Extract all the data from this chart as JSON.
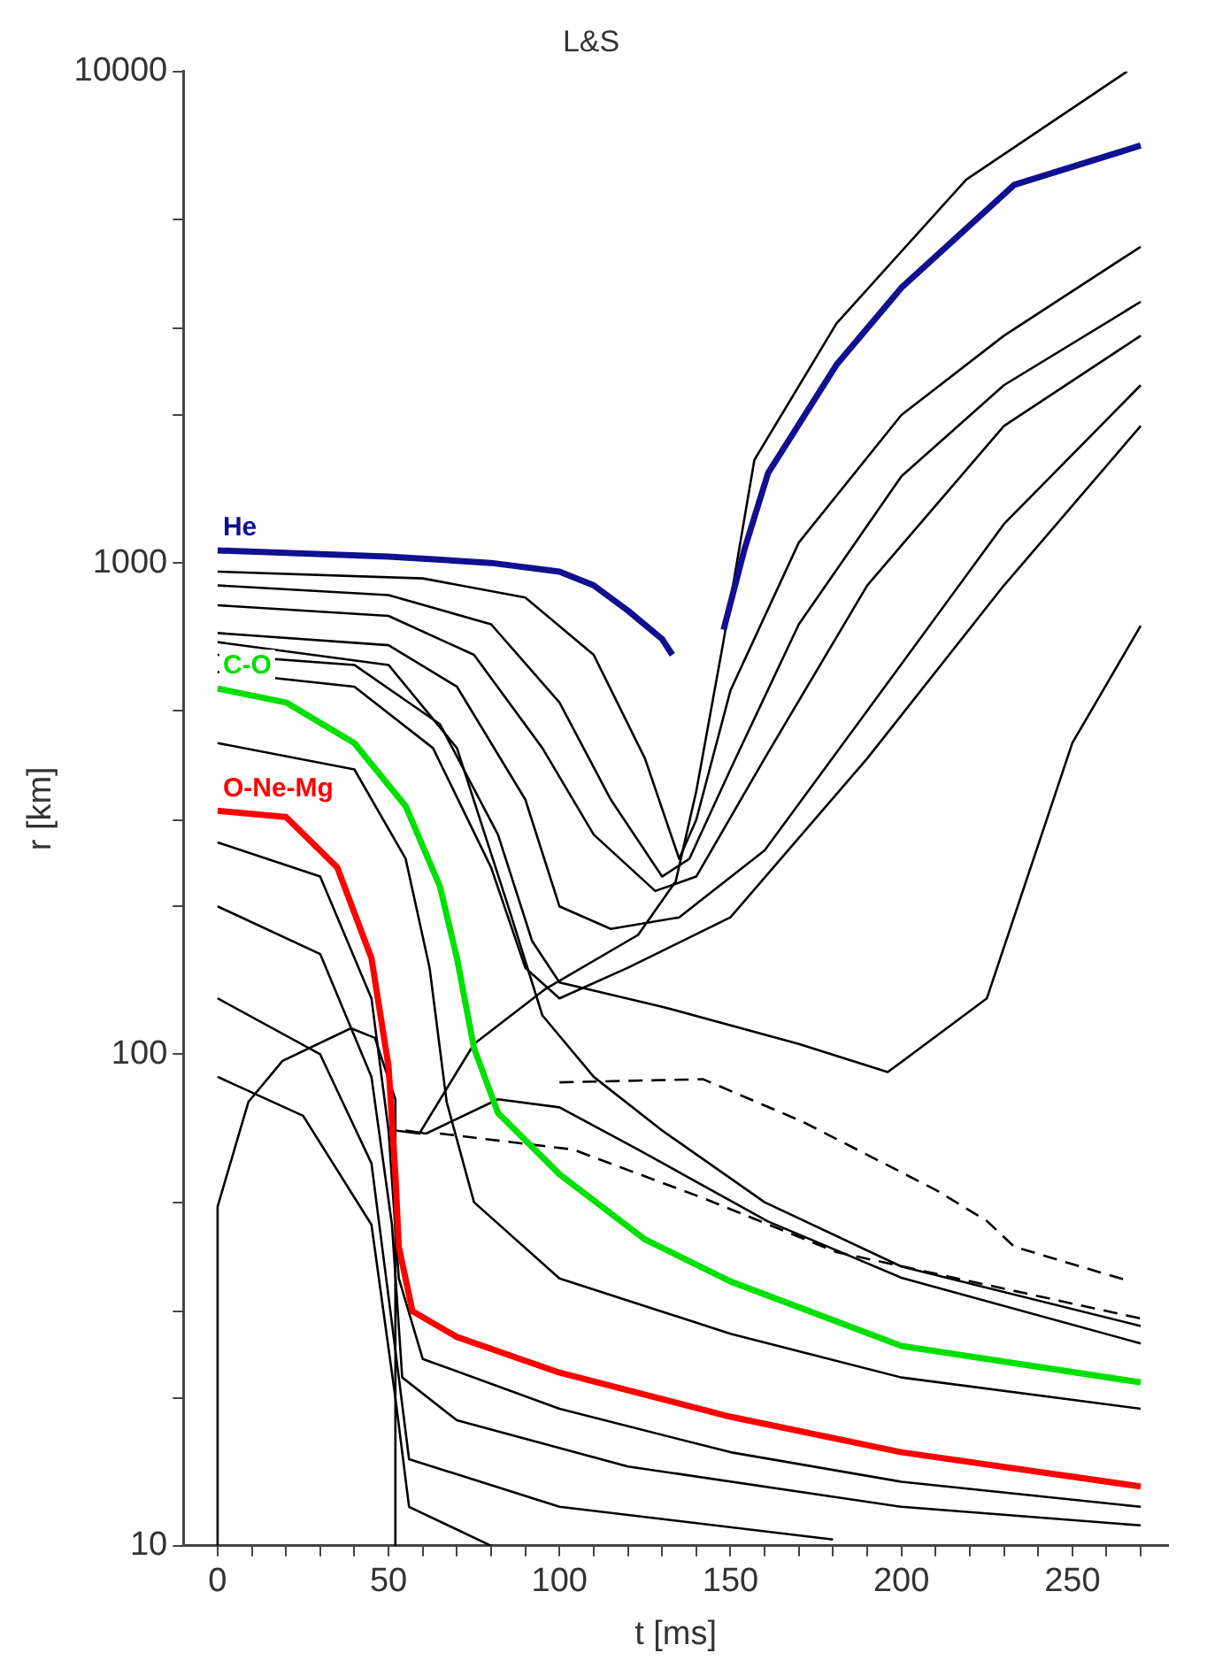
{
  "chart_data": {
    "type": "line",
    "title": "L&S",
    "xlabel": "t [ms]",
    "ylabel": "r [km]",
    "log": "y",
    "legend": false,
    "marker": "none",
    "xlim": [
      -10,
      278
    ],
    "ylim": [
      10,
      10000
    ],
    "xticks": [
      0,
      {
        "value": 10,
        "label": null
      },
      {
        "value": 20,
        "label": null
      },
      {
        "value": 30,
        "label": null
      },
      {
        "value": 40,
        "label": null
      },
      50,
      {
        "value": 60,
        "label": null
      },
      {
        "value": 70,
        "label": null
      },
      {
        "value": 80,
        "label": null
      },
      {
        "value": 90,
        "label": null
      },
      100,
      {
        "value": 110,
        "label": null
      },
      {
        "value": 120,
        "label": null
      },
      {
        "value": 130,
        "label": null
      },
      {
        "value": 140,
        "label": null
      },
      150,
      {
        "value": 160,
        "label": null
      },
      {
        "value": 170,
        "label": null
      },
      {
        "value": 180,
        "label": null
      },
      {
        "value": 190,
        "label": null
      },
      200,
      {
        "value": 210,
        "label": null
      },
      {
        "value": 220,
        "label": null
      },
      {
        "value": 230,
        "label": null
      },
      {
        "value": 240,
        "label": null
      },
      250,
      {
        "value": 260,
        "label": null
      },
      {
        "value": 270,
        "label": null
      }
    ],
    "yticks": [
      10,
      {
        "value": 20,
        "label": null
      },
      {
        "value": 30,
        "label": null
      },
      {
        "value": 50,
        "label": null
      },
      100,
      {
        "value": 200,
        "label": null
      },
      {
        "value": 300,
        "label": null
      },
      {
        "value": 500,
        "label": null
      },
      1000,
      {
        "value": 2000,
        "label": null
      },
      {
        "value": 3000,
        "label": null
      },
      {
        "value": 5000,
        "label": null
      },
      10000
    ],
    "series": [
      {
        "name": "He",
        "color": "#101090",
        "x": [
          0,
          50,
          80,
          100,
          110,
          120,
          130,
          133,
          140,
          148,
          154,
          161,
          181,
          200,
          233,
          270
        ],
        "values": [
          1060,
          1030,
          1000,
          960,
          900,
          800,
          700,
          650,
          null,
          731,
          1060,
          1523,
          2530,
          3630,
          5880,
          7070
        ]
      },
      {
        "name": "C-O",
        "color": "#00e000",
        "x": [
          0,
          20,
          40,
          55,
          65,
          70,
          75,
          82,
          100,
          125,
          150,
          200,
          270
        ],
        "values": [
          555,
          520,
          430,
          320,
          220,
          157,
          103,
          76,
          57,
          42,
          34.5,
          25.5,
          21.5
        ]
      },
      {
        "name": "O-Ne-Mg",
        "color": "#ff0000",
        "x": [
          0,
          20,
          35,
          45,
          50,
          52,
          53,
          57,
          70,
          100,
          150,
          200,
          270
        ],
        "values": [
          313,
          304,
          240,
          157,
          94.5,
          57,
          40.6,
          30,
          26.6,
          22.5,
          18.3,
          15.5,
          13.2
        ]
      },
      {
        "color": "#000000",
        "x": [
          52,
          59,
          75,
          96,
          123,
          134,
          140,
          148,
          157,
          181,
          219,
          266
        ],
        "values": [
          70,
          69,
          105,
          136,
          175,
          225,
          343,
          695,
          1620,
          3070,
          6030,
          10000
        ]
      },
      {
        "color": "#000000",
        "x": [
          0,
          0,
          9,
          19,
          39,
          46,
          52,
          52
        ],
        "values": [
          10,
          49,
          80,
          97,
          113,
          108,
          81,
          10
        ]
      },
      {
        "color": "#000000",
        "x": [
          55,
          61,
          82,
          100,
          123,
          161,
          200,
          270
        ],
        "values": [
          70,
          69,
          81,
          78,
          64,
          45.7,
          35.1,
          25.8
        ]
      },
      {
        "color": "#000000",
        "line_style": "dashed",
        "x": [
          100,
          142,
          171,
          210,
          225,
          233,
          267
        ],
        "values": [
          87.7,
          89,
          73,
          53,
          45.8,
          40.6,
          34.5
        ]
      },
      {
        "color": "#000000",
        "line_style": "dashed",
        "x": [
          65,
          104,
          142,
          181,
          270
        ],
        "values": [
          69,
          64,
          51,
          39.6,
          29
        ]
      },
      {
        "color": "#000000",
        "x": [
          0,
          60,
          90,
          110,
          125,
          135,
          140,
          150,
          170,
          200,
          230,
          270
        ],
        "values": [
          960,
          930,
          850,
          650,
          400,
          250,
          300,
          550,
          1100,
          2000,
          2900,
          4400
        ]
      },
      {
        "color": "#000000",
        "x": [
          0,
          50,
          80,
          100,
          115,
          130,
          138,
          150,
          170,
          200,
          230,
          270
        ],
        "values": [
          900,
          860,
          750,
          520,
          330,
          230,
          250,
          380,
          750,
          1500,
          2300,
          3400
        ]
      },
      {
        "color": "#000000",
        "x": [
          0,
          50,
          75,
          95,
          110,
          128,
          140,
          160,
          190,
          230,
          270
        ],
        "values": [
          820,
          780,
          650,
          420,
          280,
          215,
          230,
          400,
          900,
          1900,
          2900
        ]
      },
      {
        "color": "#000000",
        "x": [
          0,
          50,
          70,
          90,
          100,
          115,
          135,
          160,
          190,
          230,
          270
        ],
        "values": [
          720,
          680,
          560,
          330,
          200,
          180,
          190,
          260,
          500,
          1200,
          2300
        ]
      },
      {
        "color": "#000000",
        "x": [
          0,
          40,
          63,
          80,
          90,
          100,
          120,
          150,
          190,
          230,
          270
        ],
        "values": [
          600,
          560,
          420,
          240,
          150,
          130,
          150,
          190,
          400,
          900,
          1900
        ]
      },
      {
        "color": "#000000",
        "x": [
          0,
          40,
          65,
          82,
          92,
          100,
          130,
          170,
          196,
          225,
          250,
          270
        ],
        "values": [
          650,
          620,
          470,
          280,
          170,
          140,
          125,
          105,
          92,
          130,
          430,
          745
        ]
      },
      {
        "color": "#000000",
        "x": [
          0,
          50,
          70,
          85,
          95,
          110,
          130,
          160,
          200,
          270
        ],
        "values": [
          690,
          620,
          420,
          200,
          120,
          90,
          70,
          50,
          37,
          28
        ]
      },
      {
        "color": "#000000",
        "x": [
          0,
          40,
          55,
          62,
          67,
          75,
          100,
          150,
          200,
          270
        ],
        "values": [
          430,
          380,
          250,
          150,
          80,
          50,
          35,
          27,
          22,
          19
        ]
      },
      {
        "color": "#000000",
        "x": [
          0,
          30,
          45,
          50,
          53,
          60,
          100,
          150,
          200,
          270
        ],
        "values": [
          270,
          230,
          130,
          70,
          35,
          24,
          19,
          15.5,
          13.5,
          12
        ]
      },
      {
        "color": "#000000",
        "x": [
          0,
          30,
          45,
          51,
          54,
          70,
          120,
          200,
          270
        ],
        "values": [
          200,
          160,
          90,
          45,
          22,
          18,
          14.5,
          12,
          11
        ]
      },
      {
        "color": "#000000",
        "x": [
          0,
          30,
          45,
          52,
          56,
          100,
          180
        ],
        "values": [
          130,
          100,
          60,
          25,
          15,
          12,
          10.3
        ]
      },
      {
        "color": "#000000",
        "x": [
          0,
          25,
          45,
          52,
          56,
          80
        ],
        "values": [
          90,
          75,
          45,
          20,
          12,
          10
        ]
      }
    ]
  }
}
